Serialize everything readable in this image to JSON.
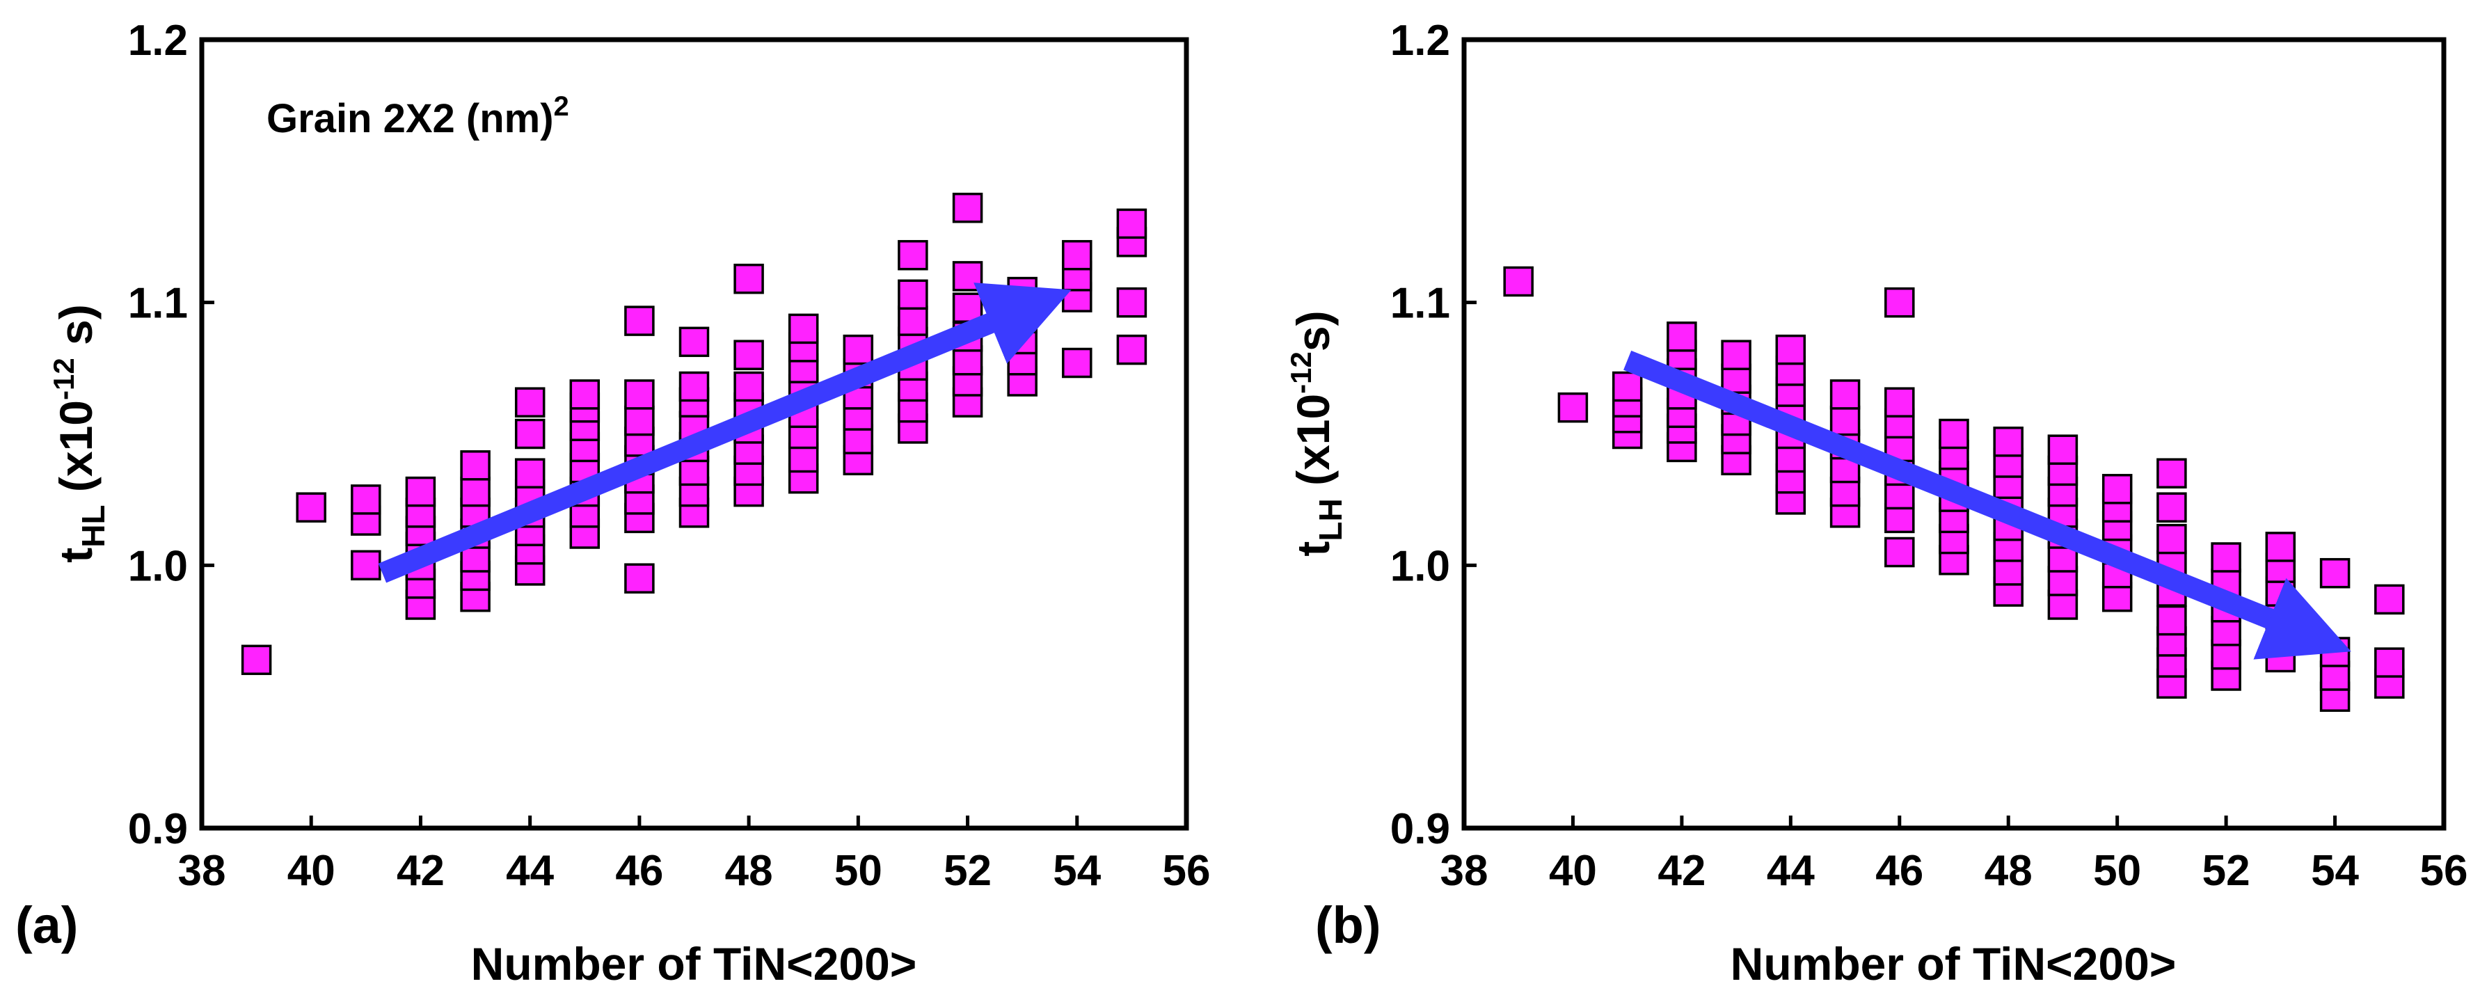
{
  "chart_data": [
    {
      "id": "a",
      "type": "scatter",
      "panel_label": "(a)",
      "annotation": {
        "text": "Grain 2X2 (nm)",
        "superscript": "2"
      },
      "xlabel": "Number of TiN<200>",
      "ylabel": {
        "base": "t",
        "sub": "HL",
        "unit_open": " (x10",
        "unit_exp": "-12",
        "unit_close": " s)"
      },
      "xlim": [
        38,
        56
      ],
      "ylim": [
        0.9,
        1.2
      ],
      "xticks": [
        "38",
        "40",
        "42",
        "44",
        "46",
        "48",
        "50",
        "52",
        "54",
        "56"
      ],
      "yticks": [
        "0.9",
        "1.0",
        "1.1",
        "1.2"
      ],
      "series": [
        {
          "name": "t_HL",
          "color": "#ff22ff",
          "points": [
            [
              39,
              0.964
            ],
            [
              40,
              1.022
            ],
            [
              41,
              1.0
            ],
            [
              41,
              1.017
            ],
            [
              41,
              1.025
            ],
            [
              42,
              0.985
            ],
            [
              42,
              0.993
            ],
            [
              42,
              1.0
            ],
            [
              42,
              1.007
            ],
            [
              42,
              1.013
            ],
            [
              42,
              1.02
            ],
            [
              42,
              1.028
            ],
            [
              43,
              0.988
            ],
            [
              43,
              0.996
            ],
            [
              43,
              1.003
            ],
            [
              43,
              1.012
            ],
            [
              43,
              1.02
            ],
            [
              43,
              1.028
            ],
            [
              43,
              1.038
            ],
            [
              44,
              0.998
            ],
            [
              44,
              1.006
            ],
            [
              44,
              1.013
            ],
            [
              44,
              1.02
            ],
            [
              44,
              1.027
            ],
            [
              44,
              1.035
            ],
            [
              44,
              1.05
            ],
            [
              44,
              1.062
            ],
            [
              45,
              1.012
            ],
            [
              45,
              1.02
            ],
            [
              45,
              1.028
            ],
            [
              45,
              1.037
            ],
            [
              45,
              1.045
            ],
            [
              45,
              1.053
            ],
            [
              45,
              1.06
            ],
            [
              45,
              1.065
            ],
            [
              46,
              0.995
            ],
            [
              46,
              1.018
            ],
            [
              46,
              1.025
            ],
            [
              46,
              1.033
            ],
            [
              46,
              1.04
            ],
            [
              46,
              1.047
            ],
            [
              46,
              1.055
            ],
            [
              46,
              1.065
            ],
            [
              46,
              1.093
            ],
            [
              47,
              1.02
            ],
            [
              47,
              1.028
            ],
            [
              47,
              1.036
            ],
            [
              47,
              1.045
            ],
            [
              47,
              1.053
            ],
            [
              47,
              1.062
            ],
            [
              47,
              1.068
            ],
            [
              47,
              1.085
            ],
            [
              48,
              1.028
            ],
            [
              48,
              1.036
            ],
            [
              48,
              1.044
            ],
            [
              48,
              1.052
            ],
            [
              48,
              1.06
            ],
            [
              48,
              1.068
            ],
            [
              48,
              1.08
            ],
            [
              48,
              1.109
            ],
            [
              49,
              1.033
            ],
            [
              49,
              1.041
            ],
            [
              49,
              1.05
            ],
            [
              49,
              1.058
            ],
            [
              49,
              1.067
            ],
            [
              49,
              1.075
            ],
            [
              49,
              1.083
            ],
            [
              49,
              1.09
            ],
            [
              50,
              1.04
            ],
            [
              50,
              1.048
            ],
            [
              50,
              1.057
            ],
            [
              50,
              1.065
            ],
            [
              50,
              1.073
            ],
            [
              50,
              1.082
            ],
            [
              51,
              1.052
            ],
            [
              51,
              1.06
            ],
            [
              51,
              1.068
            ],
            [
              51,
              1.076
            ],
            [
              51,
              1.085
            ],
            [
              51,
              1.093
            ],
            [
              51,
              1.103
            ],
            [
              51,
              1.118
            ],
            [
              52,
              1.062
            ],
            [
              52,
              1.07
            ],
            [
              52,
              1.078
            ],
            [
              52,
              1.087
            ],
            [
              52,
              1.098
            ],
            [
              52,
              1.11
            ],
            [
              52,
              1.136
            ],
            [
              53,
              1.07
            ],
            [
              53,
              1.078
            ],
            [
              53,
              1.086
            ],
            [
              53,
              1.094
            ],
            [
              53,
              1.104
            ],
            [
              54,
              1.077
            ],
            [
              54,
              1.102
            ],
            [
              54,
              1.11
            ],
            [
              54,
              1.118
            ],
            [
              55,
              1.082
            ],
            [
              55,
              1.1
            ],
            [
              55,
              1.123
            ],
            [
              55,
              1.13
            ]
          ]
        }
      ],
      "trend_arrow": {
        "from": [
          41.3,
          0.997
        ],
        "to": [
          53.8,
          1.104
        ],
        "color": "#3b3bff"
      }
    },
    {
      "id": "b",
      "type": "scatter",
      "panel_label": "(b)",
      "xlabel": "Number of TiN<200>",
      "ylabel": {
        "base": "t",
        "sub": "LH",
        "unit_open": " (x10",
        "unit_exp": "-12",
        "unit_close": "s)"
      },
      "xlim": [
        38,
        56
      ],
      "ylim": [
        0.9,
        1.2
      ],
      "xticks": [
        "38",
        "40",
        "42",
        "44",
        "46",
        "48",
        "50",
        "52",
        "54",
        "56"
      ],
      "yticks": [
        "0.9",
        "1.0",
        "1.1",
        "1.2"
      ],
      "series": [
        {
          "name": "t_LH",
          "color": "#ff22ff",
          "points": [
            [
              39,
              1.108
            ],
            [
              40,
              1.06
            ],
            [
              41,
              1.05
            ],
            [
              41,
              1.056
            ],
            [
              41,
              1.062
            ],
            [
              41,
              1.068
            ],
            [
              42,
              1.045
            ],
            [
              42,
              1.052
            ],
            [
              42,
              1.058
            ],
            [
              42,
              1.065
            ],
            [
              42,
              1.073
            ],
            [
              42,
              1.08
            ],
            [
              42,
              1.087
            ],
            [
              43,
              1.04
            ],
            [
              43,
              1.048
            ],
            [
              43,
              1.055
            ],
            [
              43,
              1.063
            ],
            [
              43,
              1.071
            ],
            [
              43,
              1.08
            ],
            [
              44,
              1.025
            ],
            [
              44,
              1.033
            ],
            [
              44,
              1.041
            ],
            [
              44,
              1.05
            ],
            [
              44,
              1.058
            ],
            [
              44,
              1.066
            ],
            [
              44,
              1.074
            ],
            [
              44,
              1.082
            ],
            [
              45,
              1.02
            ],
            [
              45,
              1.028
            ],
            [
              45,
              1.037
            ],
            [
              45,
              1.046
            ],
            [
              45,
              1.055
            ],
            [
              45,
              1.065
            ],
            [
              46,
              1.005
            ],
            [
              46,
              1.018
            ],
            [
              46,
              1.027
            ],
            [
              46,
              1.036
            ],
            [
              46,
              1.045
            ],
            [
              46,
              1.054
            ],
            [
              46,
              1.062
            ],
            [
              46,
              1.1
            ],
            [
              47,
              1.002
            ],
            [
              47,
              1.01
            ],
            [
              47,
              1.018
            ],
            [
              47,
              1.026
            ],
            [
              47,
              1.034
            ],
            [
              47,
              1.042
            ],
            [
              47,
              1.05
            ],
            [
              48,
              0.99
            ],
            [
              48,
              0.998
            ],
            [
              48,
              1.007
            ],
            [
              48,
              1.015
            ],
            [
              48,
              1.023
            ],
            [
              48,
              1.031
            ],
            [
              48,
              1.039
            ],
            [
              48,
              1.047
            ],
            [
              49,
              0.985
            ],
            [
              49,
              0.994
            ],
            [
              49,
              1.003
            ],
            [
              49,
              1.012
            ],
            [
              49,
              1.02
            ],
            [
              49,
              1.028
            ],
            [
              49,
              1.036
            ],
            [
              49,
              1.044
            ],
            [
              50,
              0.988
            ],
            [
              50,
              0.997
            ],
            [
              50,
              1.006
            ],
            [
              50,
              1.015
            ],
            [
              50,
              1.022
            ],
            [
              50,
              1.029
            ],
            [
              51,
              0.955
            ],
            [
              51,
              0.963
            ],
            [
              51,
              0.971
            ],
            [
              51,
              0.979
            ],
            [
              51,
              0.99
            ],
            [
              51,
              1.0
            ],
            [
              51,
              1.01
            ],
            [
              51,
              1.022
            ],
            [
              51,
              1.035
            ],
            [
              52,
              0.958
            ],
            [
              52,
              0.966
            ],
            [
              52,
              0.975
            ],
            [
              52,
              0.984
            ],
            [
              52,
              0.993
            ],
            [
              52,
              1.003
            ],
            [
              53,
              0.965
            ],
            [
              53,
              0.973
            ],
            [
              53,
              0.982
            ],
            [
              53,
              0.99
            ],
            [
              53,
              0.999
            ],
            [
              53,
              1.007
            ],
            [
              54,
              0.95
            ],
            [
              54,
              0.958
            ],
            [
              54,
              0.967
            ],
            [
              54,
              0.997
            ],
            [
              55,
              0.955
            ],
            [
              55,
              0.963
            ],
            [
              55,
              0.987
            ]
          ]
        }
      ],
      "trend_arrow": {
        "from": [
          41.0,
          1.078
        ],
        "to": [
          54.2,
          0.968
        ],
        "color": "#3b3bff"
      }
    }
  ]
}
